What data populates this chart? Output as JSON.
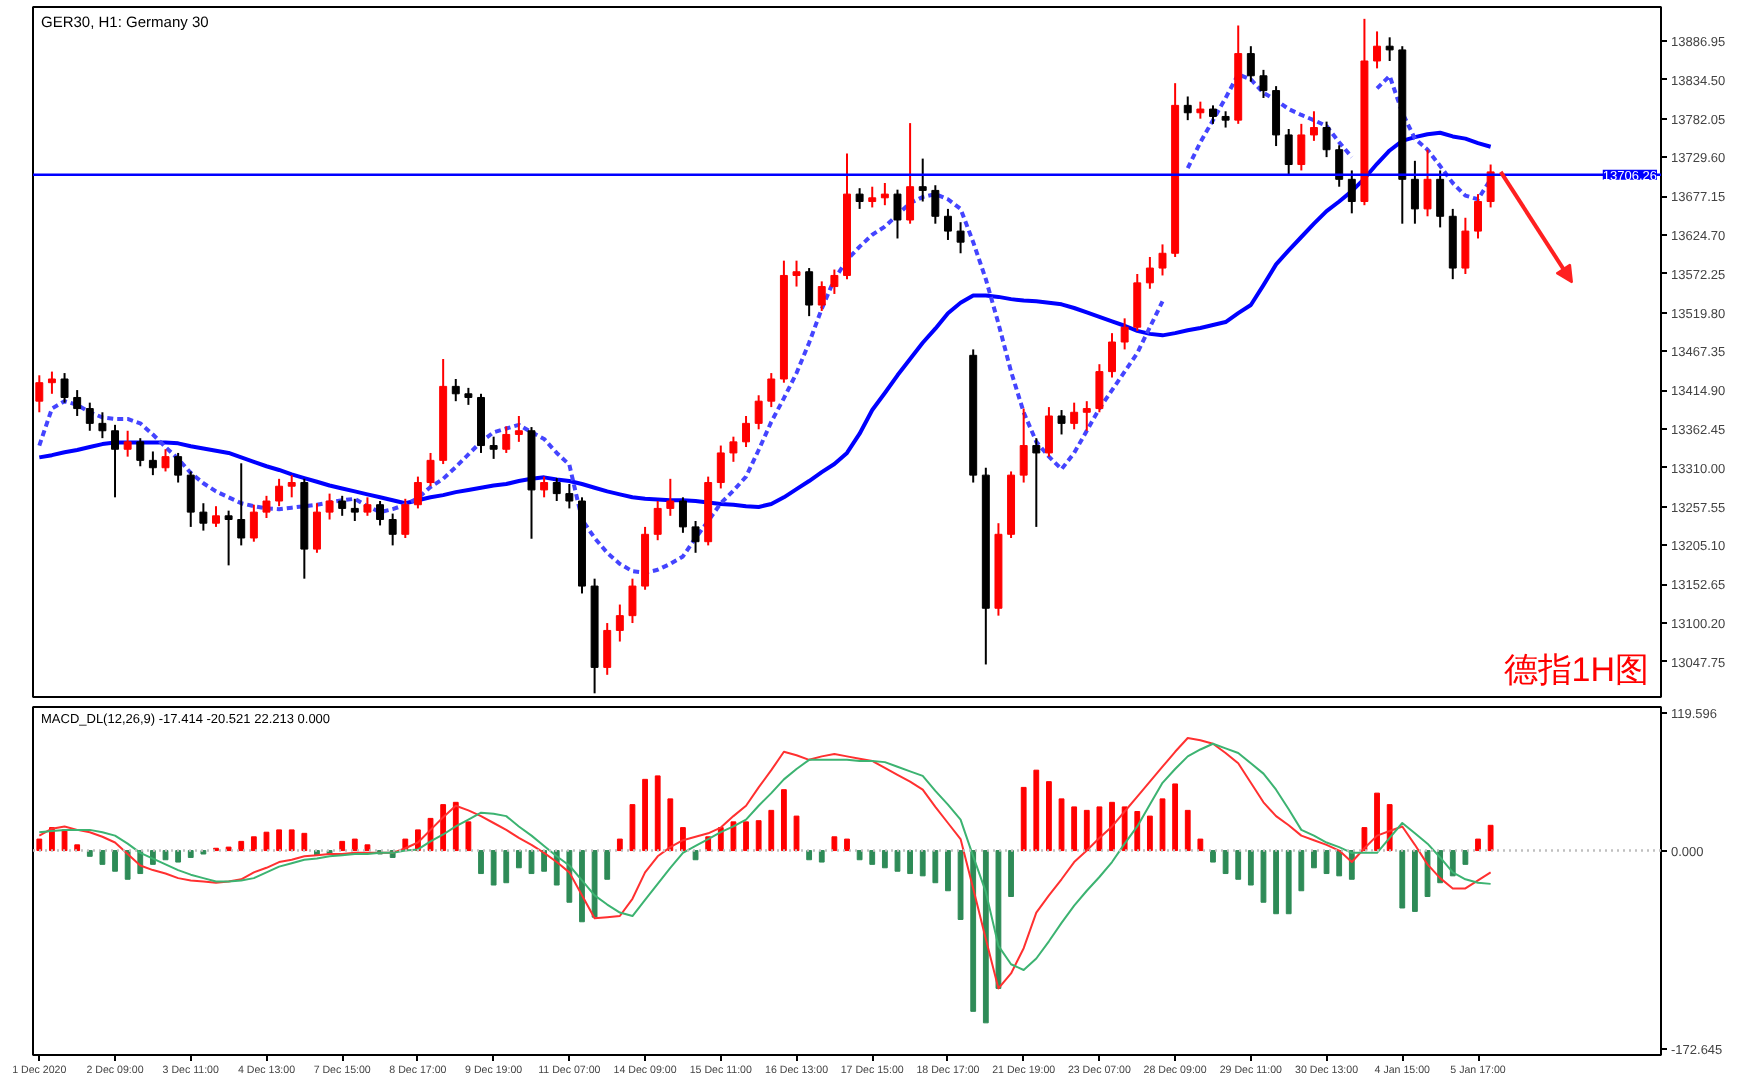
{
  "chart_data": [
    {
      "type": "candlestick",
      "title": "GER30, H1: Germany 30",
      "tick_labels": "y",
      "grid": false,
      "categories": [
        "1 Dec 2020",
        null,
        null,
        null,
        null,
        null,
        "2 Dec 09:00",
        null,
        null,
        null,
        null,
        null,
        "3 Dec 11:00",
        null,
        null,
        null,
        null,
        null,
        "4 Dec 13:00",
        null,
        null,
        null,
        null,
        null,
        "7 Dec 15:00",
        null,
        null,
        null,
        null,
        null,
        "8 Dec 17:00",
        null,
        null,
        null,
        null,
        null,
        "9 Dec 19:00",
        null,
        null,
        null,
        null,
        null,
        "11 Dec 07:00",
        null,
        null,
        null,
        null,
        null,
        "14 Dec 09:00",
        null,
        null,
        null,
        null,
        null,
        "15 Dec 11:00",
        null,
        null,
        null,
        null,
        null,
        "16 Dec 13:00",
        null,
        null,
        null,
        null,
        null,
        "17 Dec 15:00",
        null,
        null,
        null,
        null,
        null,
        "18 Dec 17:00",
        null,
        null,
        null,
        null,
        null,
        "21 Dec 19:00",
        null,
        null,
        null,
        null,
        null,
        "23 Dec 07:00",
        null,
        null,
        null,
        null,
        null,
        "28 Dec 09:00",
        null,
        null,
        null,
        null,
        null,
        "29 Dec 11:00",
        null,
        null,
        null,
        null,
        null,
        "30 Dec 13:00",
        null,
        null,
        null,
        null,
        null,
        "4 Jan 15:00",
        null,
        null,
        null,
        null,
        null,
        "5 Jan 17:00",
        null,
        null,
        null,
        null,
        null,
        null,
        null,
        null,
        null,
        null,
        null,
        null,
        null,
        null
      ],
      "ohlc": [
        [
          13400,
          13435,
          13385,
          13425
        ],
        [
          13425,
          13440,
          13410,
          13430
        ],
        [
          13430,
          13438,
          13398,
          13405
        ],
        [
          13405,
          13415,
          13380,
          13390
        ],
        [
          13390,
          13398,
          13360,
          13370
        ],
        [
          13370,
          13385,
          13350,
          13360
        ],
        [
          13360,
          13368,
          13270,
          13335
        ],
        [
          13335,
          13360,
          13325,
          13345
        ],
        [
          13345,
          13350,
          13312,
          13320
        ],
        [
          13320,
          13332,
          13300,
          13310
        ],
        [
          13310,
          13335,
          13305,
          13325
        ],
        [
          13325,
          13330,
          13290,
          13300
        ],
        [
          13300,
          13305,
          13230,
          13250
        ],
        [
          13250,
          13262,
          13225,
          13235
        ],
        [
          13235,
          13258,
          13230,
          13245
        ],
        [
          13245,
          13252,
          13178,
          13240
        ],
        [
          13240,
          13316,
          13205,
          13215
        ],
        [
          13215,
          13260,
          13210,
          13250
        ],
        [
          13250,
          13272,
          13242,
          13265
        ],
        [
          13265,
          13295,
          13258,
          13285
        ],
        [
          13285,
          13300,
          13270,
          13290
        ],
        [
          13290,
          13295,
          13160,
          13200
        ],
        [
          13200,
          13262,
          13195,
          13250
        ],
        [
          13250,
          13275,
          13240,
          13265
        ],
        [
          13265,
          13272,
          13245,
          13255
        ],
        [
          13255,
          13268,
          13238,
          13250
        ],
        [
          13250,
          13270,
          13245,
          13260
        ],
        [
          13260,
          13265,
          13232,
          13240
        ],
        [
          13240,
          13248,
          13205,
          13220
        ],
        [
          13220,
          13268,
          13215,
          13260
        ],
        [
          13260,
          13298,
          13255,
          13290
        ],
        [
          13290,
          13330,
          13285,
          13320
        ],
        [
          13320,
          13457,
          13315,
          13420
        ],
        [
          13420,
          13430,
          13400,
          13410
        ],
        [
          13410,
          13418,
          13395,
          13405
        ],
        [
          13405,
          13410,
          13330,
          13340
        ],
        [
          13340,
          13352,
          13322,
          13335
        ],
        [
          13335,
          13366,
          13330,
          13355
        ],
        [
          13355,
          13380,
          13345,
          13360
        ],
        [
          13360,
          13365,
          13214,
          13280
        ],
        [
          13280,
          13298,
          13270,
          13290
        ],
        [
          13290,
          13296,
          13265,
          13275
        ],
        [
          13275,
          13288,
          13255,
          13265
        ],
        [
          13265,
          13270,
          13140,
          13150
        ],
        [
          13150,
          13160,
          13005,
          13040
        ],
        [
          13040,
          13100,
          13030,
          13090
        ],
        [
          13090,
          13125,
          13075,
          13110
        ],
        [
          13110,
          13160,
          13100,
          13150
        ],
        [
          13150,
          13230,
          13145,
          13220
        ],
        [
          13220,
          13265,
          13212,
          13255
        ],
        [
          13255,
          13295,
          13245,
          13265
        ],
        [
          13265,
          13270,
          13222,
          13230
        ],
        [
          13230,
          13238,
          13195,
          13210
        ],
        [
          13210,
          13298,
          13205,
          13290
        ],
        [
          13290,
          13340,
          13282,
          13330
        ],
        [
          13330,
          13352,
          13318,
          13345
        ],
        [
          13345,
          13380,
          13338,
          13370
        ],
        [
          13370,
          13408,
          13362,
          13400
        ],
        [
          13400,
          13438,
          13392,
          13430
        ],
        [
          13430,
          13590,
          13425,
          13570
        ],
        [
          13570,
          13590,
          13555,
          13575
        ],
        [
          13575,
          13580,
          13515,
          13530
        ],
        [
          13530,
          13562,
          13522,
          13555
        ],
        [
          13555,
          13578,
          13545,
          13570
        ],
        [
          13570,
          13735,
          13565,
          13680
        ],
        [
          13680,
          13688,
          13660,
          13670
        ],
        [
          13670,
          13690,
          13662,
          13675
        ],
        [
          13675,
          13695,
          13665,
          13680
        ],
        [
          13680,
          13686,
          13620,
          13645
        ],
        [
          13645,
          13776,
          13640,
          13690
        ],
        [
          13690,
          13728,
          13670,
          13685
        ],
        [
          13685,
          13692,
          13640,
          13650
        ],
        [
          13650,
          13660,
          13618,
          13630
        ],
        [
          13630,
          13642,
          13600,
          13615
        ],
        [
          13462,
          13470,
          13290,
          13300
        ],
        [
          13300,
          13310,
          13044,
          13120
        ],
        [
          13120,
          13235,
          13110,
          13220
        ],
        [
          13220,
          13305,
          13215,
          13300
        ],
        [
          13300,
          13390,
          13290,
          13340
        ],
        [
          13340,
          13350,
          13230,
          13330
        ],
        [
          13330,
          13392,
          13325,
          13380
        ],
        [
          13380,
          13388,
          13355,
          13370
        ],
        [
          13370,
          13398,
          13362,
          13385
        ],
        [
          13385,
          13400,
          13360,
          13390
        ],
        [
          13390,
          13450,
          13385,
          13440
        ],
        [
          13440,
          13492,
          13432,
          13480
        ],
        [
          13480,
          13512,
          13470,
          13500
        ],
        [
          13500,
          13572,
          13495,
          13560
        ],
        [
          13560,
          13595,
          13552,
          13580
        ],
        [
          13580,
          13612,
          13570,
          13600
        ],
        [
          13600,
          13830,
          13595,
          13800
        ],
        [
          13800,
          13812,
          13780,
          13790
        ],
        [
          13790,
          13805,
          13782,
          13795
        ],
        [
          13795,
          13800,
          13775,
          13785
        ],
        [
          13785,
          13792,
          13770,
          13780
        ],
        [
          13780,
          13908,
          13775,
          13870
        ],
        [
          13870,
          13880,
          13832,
          13840
        ],
        [
          13840,
          13848,
          13810,
          13820
        ],
        [
          13820,
          13826,
          13745,
          13760
        ],
        [
          13760,
          13768,
          13705,
          13720
        ],
        [
          13720,
          13775,
          13712,
          13760
        ],
        [
          13760,
          13792,
          13752,
          13770
        ],
        [
          13770,
          13778,
          13730,
          13740
        ],
        [
          13740,
          13746,
          13690,
          13700
        ],
        [
          13700,
          13712,
          13654,
          13670
        ],
        [
          13670,
          13917,
          13665,
          13860
        ],
        [
          13860,
          13900,
          13850,
          13880
        ],
        [
          13880,
          13892,
          13860,
          13875
        ],
        [
          13875,
          13880,
          13640,
          13700
        ],
        [
          13700,
          13725,
          13640,
          13660
        ],
        [
          13660,
          13740,
          13650,
          13700
        ],
        [
          13700,
          13712,
          13635,
          13650
        ],
        [
          13650,
          13660,
          13565,
          13580
        ],
        [
          13580,
          13648,
          13572,
          13630
        ],
        [
          13630,
          13680,
          13620,
          13670
        ],
        [
          13670,
          13720,
          13662,
          13710
        ],
        null,
        null,
        null,
        null,
        null,
        null,
        null,
        null,
        null,
        null,
        null,
        null,
        null
      ],
      "colors": [
        "#ff0000",
        "#ff0000",
        "#000000",
        "#000000",
        "#000000",
        "#000000",
        "#000000",
        "#ff0000",
        "#000000",
        "#000000",
        "#ff0000",
        "#000000",
        "#000000",
        "#000000",
        "#ff0000",
        "#000000",
        "#000000",
        "#ff0000",
        "#ff0000",
        "#ff0000",
        "#ff0000",
        "#000000",
        "#ff0000",
        "#ff0000",
        "#000000",
        "#000000",
        "#ff0000",
        "#000000",
        "#000000",
        "#ff0000",
        "#ff0000",
        "#ff0000",
        "#ff0000",
        "#000000",
        "#000000",
        "#000000",
        "#000000",
        "#ff0000",
        "#ff0000",
        "#000000",
        "#ff0000",
        "#000000",
        "#000000",
        "#000000",
        "#000000",
        "#ff0000",
        "#ff0000",
        "#ff0000",
        "#ff0000",
        "#ff0000",
        "#ff0000",
        "#000000",
        "#000000",
        "#ff0000",
        "#ff0000",
        "#ff0000",
        "#ff0000",
        "#ff0000",
        "#ff0000",
        "#ff0000",
        "#ff0000",
        "#000000",
        "#ff0000",
        "#ff0000",
        "#ff0000",
        "#000000",
        "#ff0000",
        "#ff0000",
        "#000000",
        "#ff0000",
        "#000000",
        "#000000",
        "#000000",
        "#000000",
        "#000000",
        "#000000",
        "#ff0000",
        "#ff0000",
        "#ff0000",
        "#000000",
        "#ff0000",
        "#000000",
        "#ff0000",
        "#ff0000",
        "#ff0000",
        "#ff0000",
        "#ff0000",
        "#ff0000",
        "#ff0000",
        "#ff0000",
        "#ff0000",
        "#000000",
        "#ff0000",
        "#000000",
        "#000000",
        "#ff0000",
        "#000000",
        "#000000",
        "#000000",
        "#000000",
        "#ff0000",
        "#ff0000",
        "#000000",
        "#000000",
        "#000000",
        "#ff0000",
        "#ff0000",
        "#000000",
        "#000000",
        "#000000",
        "#ff0000",
        "#000000",
        "#000000",
        "#ff0000",
        "#ff0000",
        "#ff0000",
        null,
        null,
        null,
        null,
        null,
        null,
        null,
        null,
        null,
        null,
        null,
        null,
        null
      ],
      "series": [
        {
          "type": "line",
          "color": "#0000ff",
          "line_style": "solid",
          "values": [
            13324,
            13327,
            13331,
            13334,
            13338,
            13342,
            13344,
            13344,
            13344,
            13344,
            13344,
            13343,
            13339,
            13336,
            13333,
            13330,
            13324,
            13318,
            13312,
            13307,
            13301,
            13296,
            13291,
            13286,
            13282,
            13278,
            13274,
            13270,
            13266,
            13262,
            13266,
            13270,
            13273,
            13277,
            13280,
            13283,
            13286,
            13288,
            13292,
            13295,
            13297,
            13294,
            13292,
            13288,
            13283,
            13278,
            13274,
            13270,
            13268,
            13267,
            13266,
            13266,
            13265,
            13263,
            13261,
            13260,
            13258,
            13257,
            13261,
            13270,
            13281,
            13292,
            13304,
            13315,
            13330,
            13356,
            13388,
            13411,
            13435,
            13457,
            13479,
            13498,
            13519,
            13533,
            13543,
            13543,
            13541,
            13538,
            13536,
            13535,
            13533,
            13531,
            13526,
            13520,
            13514,
            13508,
            13502,
            13495,
            13491,
            13489,
            13492,
            13496,
            13499,
            13503,
            13507,
            13519,
            13530,
            13557,
            13585,
            13604,
            13622,
            13640,
            13657,
            13670,
            13684,
            13701,
            13721,
            13739,
            13752,
            13757,
            13761,
            13763,
            13758,
            13755,
            13749,
            13744,
            null,
            null,
            null,
            null,
            null,
            null,
            null,
            null,
            null,
            null,
            null,
            null,
            null
          ]
        },
        {
          "type": "line",
          "color": "#4444ff",
          "line_style": "dashed",
          "values": [
            13340,
            13390,
            13400,
            13395,
            13385,
            13378,
            13376,
            13376,
            13370,
            13355,
            13338,
            13322,
            13303,
            13289,
            13278,
            13270,
            13262,
            13258,
            13255,
            13254,
            13256,
            13258,
            13260,
            13263,
            13266,
            13268,
            13258,
            13250,
            13254,
            13260,
            13269,
            13284,
            13295,
            13311,
            13328,
            13345,
            13358,
            13363,
            13368,
            13358,
            13349,
            13330,
            13314,
            13240,
            13215,
            13195,
            13180,
            13170,
            13168,
            13172,
            13180,
            13190,
            13215,
            13238,
            13262,
            13279,
            13298,
            13334,
            13372,
            13404,
            13438,
            13479,
            13525,
            13565,
            13591,
            13609,
            13625,
            13636,
            13652,
            13668,
            13676,
            13680,
            13673,
            13660,
            13615,
            13565,
            13505,
            13440,
            13385,
            13345,
            13325,
            13308,
            13330,
            13360,
            13390,
            13415,
            13440,
            13465,
            13500,
            13535,
            null,
            13715,
            13750,
            13780,
            13810,
            13842,
            13835,
            13817,
            13807,
            13795,
            13787,
            13780,
            13772,
            13750,
            13730,
            null,
            13823,
            13840,
            13790,
            13755,
            13740,
            13718,
            13695,
            13678,
            13673,
            13700,
            null,
            null,
            null,
            null,
            null,
            null,
            null,
            null,
            null,
            null,
            null,
            null,
            null
          ]
        }
      ],
      "ylim": [
        13000,
        13933
      ],
      "yticks": [
        13886.95,
        {
          "value": 13834.5,
          "label": "13834.50"
        },
        13782.05,
        {
          "value": 13729.6,
          "label": "13729.60"
        },
        13677.15,
        {
          "value": 13624.7,
          "label": "13624.70"
        },
        13572.25,
        {
          "value": 13519.8,
          "label": "13519.80"
        },
        13467.35,
        {
          "value": 13414.9,
          "label": "13414.90"
        },
        13362.45,
        {
          "value": 13310,
          "label": "13310.00"
        },
        13257.55,
        {
          "value": 13205.1,
          "label": "13205.10"
        },
        13152.65,
        {
          "value": 13100.2,
          "label": "13100.20"
        },
        13047.75
      ],
      "ref_lines": [
        {
          "axis": "y",
          "value": 13706.26,
          "label": "13706.26",
          "color": "#0000ff"
        }
      ],
      "annotations": [
        "德指1H图"
      ]
    },
    {
      "type": "bar",
      "title": "MACD_DL(12,26,9) -17.414 -20.521 22.213 0.000",
      "grid": false,
      "categories": [
        "1 Dec 2020",
        null,
        null,
        null,
        null,
        null,
        "2 Dec 09:00",
        null,
        null,
        null,
        null,
        null,
        "3 Dec 11:00",
        null,
        null,
        null,
        null,
        null,
        "4 Dec 13:00",
        null,
        null,
        null,
        null,
        null,
        "7 Dec 15:00",
        null,
        null,
        null,
        null,
        null,
        "8 Dec 17:00",
        null,
        null,
        null,
        null,
        null,
        "9 Dec 19:00",
        null,
        null,
        null,
        null,
        null,
        "11 Dec 07:00",
        null,
        null,
        null,
        null,
        null,
        "14 Dec 09:00",
        null,
        null,
        null,
        null,
        null,
        "15 Dec 11:00",
        null,
        null,
        null,
        null,
        null,
        "16 Dec 13:00",
        null,
        null,
        null,
        null,
        null,
        "17 Dec 15:00",
        null,
        null,
        null,
        null,
        null,
        "18 Dec 17:00",
        null,
        null,
        null,
        null,
        null,
        "21 Dec 19:00",
        null,
        null,
        null,
        null,
        null,
        "23 Dec 07:00",
        null,
        null,
        null,
        null,
        null,
        "28 Dec 09:00",
        null,
        null,
        null,
        null,
        null,
        "29 Dec 11:00",
        null,
        null,
        null,
        null,
        null,
        "30 Dec 13:00",
        null,
        null,
        null,
        null,
        null,
        "4 Jan 15:00",
        null,
        null,
        null,
        null,
        null,
        "5 Jan 17:00",
        null,
        null,
        null,
        null,
        null,
        null,
        null,
        null,
        null,
        null,
        null,
        null,
        null,
        null
      ],
      "series": [
        {
          "type": "bar",
          "values": [
            10,
            20,
            18,
            5,
            -5,
            -12,
            -18,
            -25,
            -20,
            -12,
            -8,
            -10,
            -6,
            -3,
            2,
            3,
            8,
            12,
            16,
            18,
            18,
            15,
            -4,
            -3,
            8,
            10,
            5,
            -3,
            -6,
            10,
            18,
            28,
            40,
            42,
            25,
            -20,
            -30,
            -28,
            -15,
            -20,
            -18,
            -30,
            -45,
            -62,
            -58,
            -25,
            10,
            40,
            62,
            65,
            45,
            20,
            -8,
            12,
            20,
            25,
            25,
            26,
            35,
            53,
            30,
            -8,
            -10,
            12,
            10,
            -8,
            -12,
            -15,
            -18,
            -20,
            -22,
            -28,
            -35,
            -60,
            -140,
            -150,
            -120,
            -40,
            55,
            70,
            60,
            45,
            38,
            35,
            38,
            42,
            38,
            34,
            30,
            45,
            58,
            35,
            10,
            -10,
            -20,
            -25,
            -30,
            -45,
            -55,
            -55,
            -35,
            -15,
            -20,
            -22,
            -25,
            20,
            50,
            40,
            -50,
            -53,
            -40,
            -28,
            -22,
            -12,
            10,
            22,
            null,
            null,
            null,
            null,
            null,
            null,
            null,
            null,
            null,
            null,
            null,
            null,
            null
          ],
          "colors": [
            "#ff0000",
            "#ff0000",
            "#ff0000",
            "#ff0000",
            "#2e8b57",
            "#2e8b57",
            "#2e8b57",
            "#2e8b57",
            "#2e8b57",
            "#2e8b57",
            "#2e8b57",
            "#2e8b57",
            "#2e8b57",
            "#2e8b57",
            "#ff0000",
            "#ff0000",
            "#ff0000",
            "#ff0000",
            "#ff0000",
            "#ff0000",
            "#ff0000",
            "#ff0000",
            "#2e8b57",
            "#2e8b57",
            "#ff0000",
            "#ff0000",
            "#ff0000",
            "#2e8b57",
            "#2e8b57",
            "#ff0000",
            "#ff0000",
            "#ff0000",
            "#ff0000",
            "#ff0000",
            "#ff0000",
            "#2e8b57",
            "#2e8b57",
            "#2e8b57",
            "#2e8b57",
            "#2e8b57",
            "#2e8b57",
            "#2e8b57",
            "#2e8b57",
            "#2e8b57",
            "#2e8b57",
            "#2e8b57",
            "#ff0000",
            "#ff0000",
            "#ff0000",
            "#ff0000",
            "#ff0000",
            "#ff0000",
            "#2e8b57",
            "#ff0000",
            "#ff0000",
            "#ff0000",
            "#ff0000",
            "#ff0000",
            "#ff0000",
            "#ff0000",
            "#ff0000",
            "#2e8b57",
            "#2e8b57",
            "#ff0000",
            "#ff0000",
            "#2e8b57",
            "#2e8b57",
            "#2e8b57",
            "#2e8b57",
            "#2e8b57",
            "#2e8b57",
            "#2e8b57",
            "#2e8b57",
            "#2e8b57",
            "#2e8b57",
            "#2e8b57",
            "#2e8b57",
            "#2e8b57",
            "#ff0000",
            "#ff0000",
            "#ff0000",
            "#ff0000",
            "#ff0000",
            "#ff0000",
            "#ff0000",
            "#ff0000",
            "#ff0000",
            "#ff0000",
            "#ff0000",
            "#ff0000",
            "#ff0000",
            "#ff0000",
            "#ff0000",
            "#2e8b57",
            "#2e8b57",
            "#2e8b57",
            "#2e8b57",
            "#2e8b57",
            "#2e8b57",
            "#2e8b57",
            "#2e8b57",
            "#2e8b57",
            "#2e8b57",
            "#2e8b57",
            "#2e8b57",
            "#ff0000",
            "#ff0000",
            "#ff0000",
            "#2e8b57",
            "#2e8b57",
            "#2e8b57",
            "#2e8b57",
            "#2e8b57",
            "#2e8b57",
            "#ff0000",
            "#ff0000",
            null,
            null,
            null,
            null,
            null,
            null,
            null,
            null,
            null,
            null,
            null,
            null,
            null
          ]
        },
        {
          "type": "line",
          "color": "#ff3030",
          "values": [
            13,
            19,
            21,
            18,
            16,
            12,
            7,
            -3,
            -13,
            -17,
            -20,
            -24,
            -26,
            -27,
            -28,
            -27,
            -25,
            -19,
            -15,
            -10,
            -8,
            -5,
            -4,
            -3,
            -3,
            -2,
            -2,
            -2,
            -2,
            2,
            7,
            18,
            29,
            39,
            35,
            30,
            24,
            18,
            11,
            5,
            -2,
            -10,
            -19,
            -39,
            -59,
            -58,
            -57,
            -42,
            -19,
            -5,
            3,
            9,
            12,
            15,
            20,
            30,
            39,
            55,
            70,
            86,
            83,
            79,
            82,
            84,
            82,
            80,
            78,
            72,
            66,
            60,
            53,
            38,
            24,
            10,
            -33,
            -77,
            -120,
            -107,
            -85,
            -54,
            -39,
            -25,
            -10,
            0,
            11,
            21,
            34,
            47,
            60,
            73,
            86,
            98,
            96,
            93,
            85,
            76,
            59,
            42,
            30,
            22,
            13,
            9,
            5,
            0,
            -10,
            2,
            13,
            17,
            21,
            5,
            -12,
            -24,
            -33,
            -33,
            -26,
            -19,
            null,
            null,
            null,
            null,
            null,
            null,
            null,
            null,
            null,
            null,
            null,
            null,
            null
          ]
        },
        {
          "type": "line",
          "color": "#3cb371",
          "values": [
            16,
            17,
            18,
            18,
            18,
            16,
            13,
            6,
            -2,
            -7,
            -12,
            -17,
            -21,
            -24,
            -27,
            -27,
            -26,
            -24,
            -19,
            -14,
            -11,
            -8,
            -7,
            -5,
            -4,
            -3,
            -3,
            -2,
            -2,
            0,
            1,
            8,
            14,
            21,
            27,
            33,
            32,
            30,
            21,
            13,
            4,
            -5,
            -13,
            -26,
            -39,
            -47,
            -54,
            -57,
            -43,
            -29,
            -15,
            -2,
            4,
            10,
            16,
            21,
            27,
            39,
            50,
            62,
            71,
            79,
            79,
            79,
            79,
            78,
            78,
            77,
            73,
            69,
            65,
            52,
            40,
            27,
            -5,
            -36,
            -83,
            -99,
            -104,
            -94,
            -79,
            -63,
            -48,
            -35,
            -23,
            -10,
            6,
            21,
            40,
            59,
            71,
            82,
            88,
            93,
            89,
            85,
            76,
            67,
            53,
            36,
            18,
            13,
            7,
            3,
            -2,
            -2,
            -2,
            11,
            24,
            15,
            6,
            -6,
            -19,
            -25,
            -28,
            -29,
            null,
            null,
            null,
            null,
            null,
            null,
            null,
            null,
            null,
            null,
            null,
            null,
            null
          ]
        }
      ],
      "ylim": [
        -178,
        125
      ],
      "yticks": [
        119.596,
        {
          "value": 0,
          "label": "0.000"
        },
        -172.645
      ],
      "ref_lines": [
        {
          "axis": "y",
          "value": 0,
          "color": "#c0c0c0",
          "line_style": "dotted"
        }
      ]
    }
  ]
}
